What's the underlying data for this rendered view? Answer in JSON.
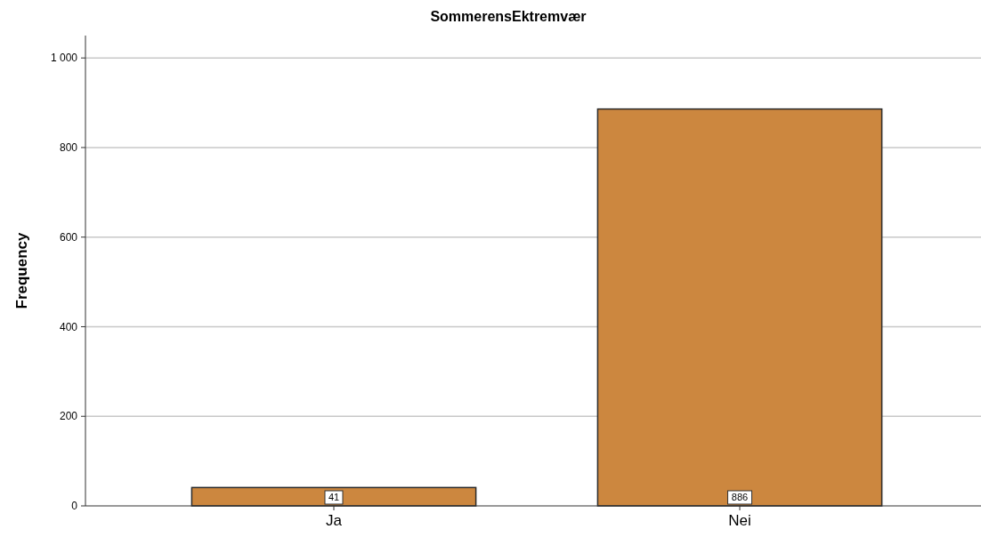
{
  "chart_data": {
    "type": "bar",
    "title": "SommerensEktremvær",
    "ylabel": "Frequency",
    "categories": [
      "Ja",
      "Nei"
    ],
    "values": [
      41,
      886
    ],
    "color": "#cc873f",
    "ylim": [
      0,
      1050
    ],
    "yticks": [
      0,
      200,
      400,
      600,
      800,
      {
        "value": 1000,
        "label": "1 000"
      }
    ],
    "grid": "y",
    "data_labels": true
  }
}
